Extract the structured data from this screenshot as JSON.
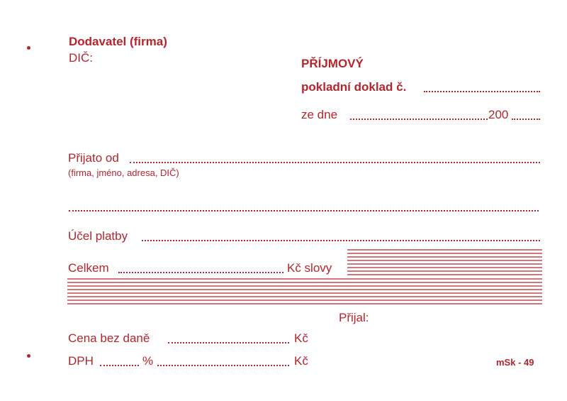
{
  "supplier": {
    "label": "Dodavatel (firma)",
    "tax_id": "DIČ:"
  },
  "receipt": {
    "title": "PŘÍJMOVÝ",
    "number_label": "pokladní doklad č.",
    "date_label": "ze dne",
    "year_prefix": "200"
  },
  "received_from": {
    "label": "Přijato od",
    "hint": "(firma, jméno, adresa, DIČ)"
  },
  "purpose": "Účel platby",
  "total": {
    "label": "Celkem",
    "words_label": "Kč slovy"
  },
  "received_by": "Přijal:",
  "net_price": {
    "label": "Cena bez daně",
    "currency": "Kč"
  },
  "vat": {
    "label": "DPH",
    "percent": "%",
    "currency": "Kč"
  },
  "form_code": "mSk - 49"
}
